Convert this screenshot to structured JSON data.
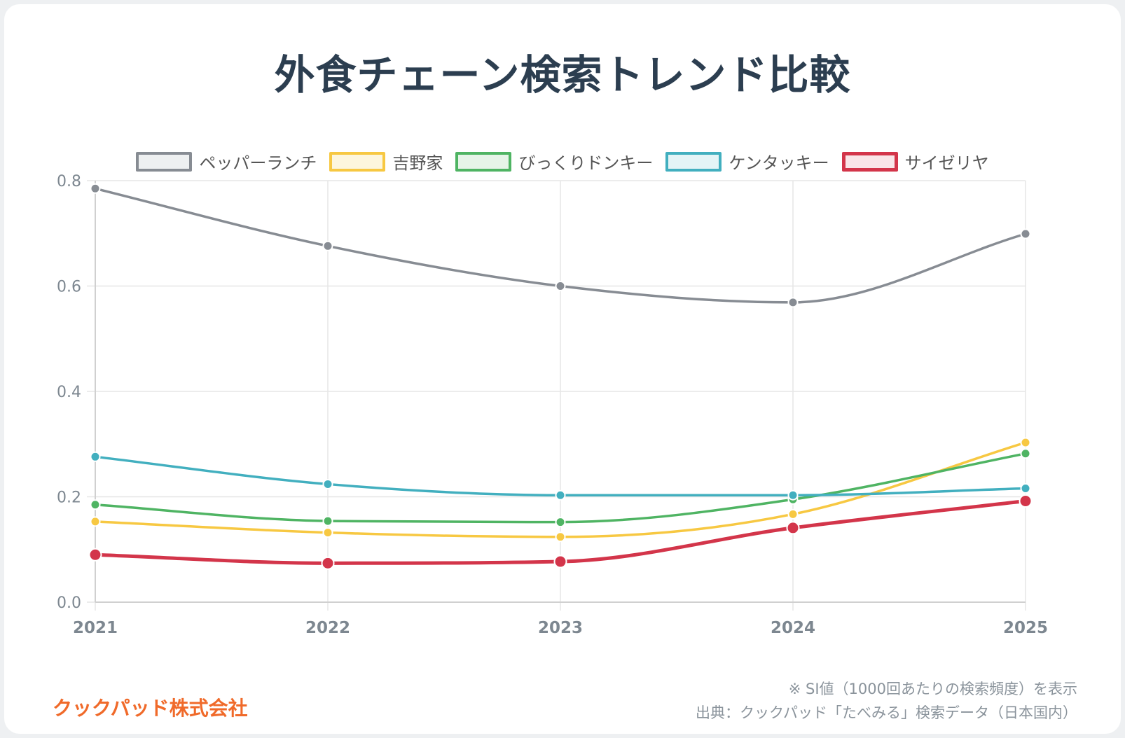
{
  "title": "外食チェーン検索トレンド比較",
  "company": "クックパッド株式会社",
  "note": "※ SI値（1000回あたりの検索頻度）を表示",
  "source": "出典：クックパッド「たべみる」検索データ（日本国内）",
  "colors": {
    "grid": "#e6e6e6",
    "axis_text": "#7d8790"
  },
  "chart_data": {
    "type": "line",
    "title": "外食チェーン検索トレンド比較",
    "x": [
      "2021",
      "2022",
      "2023",
      "2024",
      "2025"
    ],
    "ylim": [
      0,
      0.8
    ],
    "yticks": [
      "0.0",
      "0.2",
      "0.4",
      "0.6",
      "0.8"
    ],
    "grid": true,
    "legend_position": "top",
    "series": [
      {
        "name": "ペッパーランチ",
        "values": [
          0.785,
          0.676,
          0.6,
          0.569,
          0.699
        ],
        "color": "#878c93",
        "fill": "#eef0f1",
        "bold": false
      },
      {
        "name": "吉野家",
        "values": [
          0.153,
          0.132,
          0.124,
          0.167,
          0.303
        ],
        "color": "#f7c842",
        "fill": "#fdf6dd",
        "bold": false
      },
      {
        "name": "びっくりドンキー",
        "values": [
          0.185,
          0.154,
          0.152,
          0.195,
          0.282
        ],
        "color": "#4fb463",
        "fill": "#e6f4e8",
        "bold": false
      },
      {
        "name": "ケンタッキー",
        "values": [
          0.276,
          0.224,
          0.203,
          0.203,
          0.216
        ],
        "color": "#42afbf",
        "fill": "#e4f4f6",
        "bold": false
      },
      {
        "name": "サイゼリヤ",
        "values": [
          0.09,
          0.074,
          0.077,
          0.141,
          0.192
        ],
        "color": "#d3354a",
        "fill": "#f9e5e8",
        "bold": true
      }
    ]
  }
}
